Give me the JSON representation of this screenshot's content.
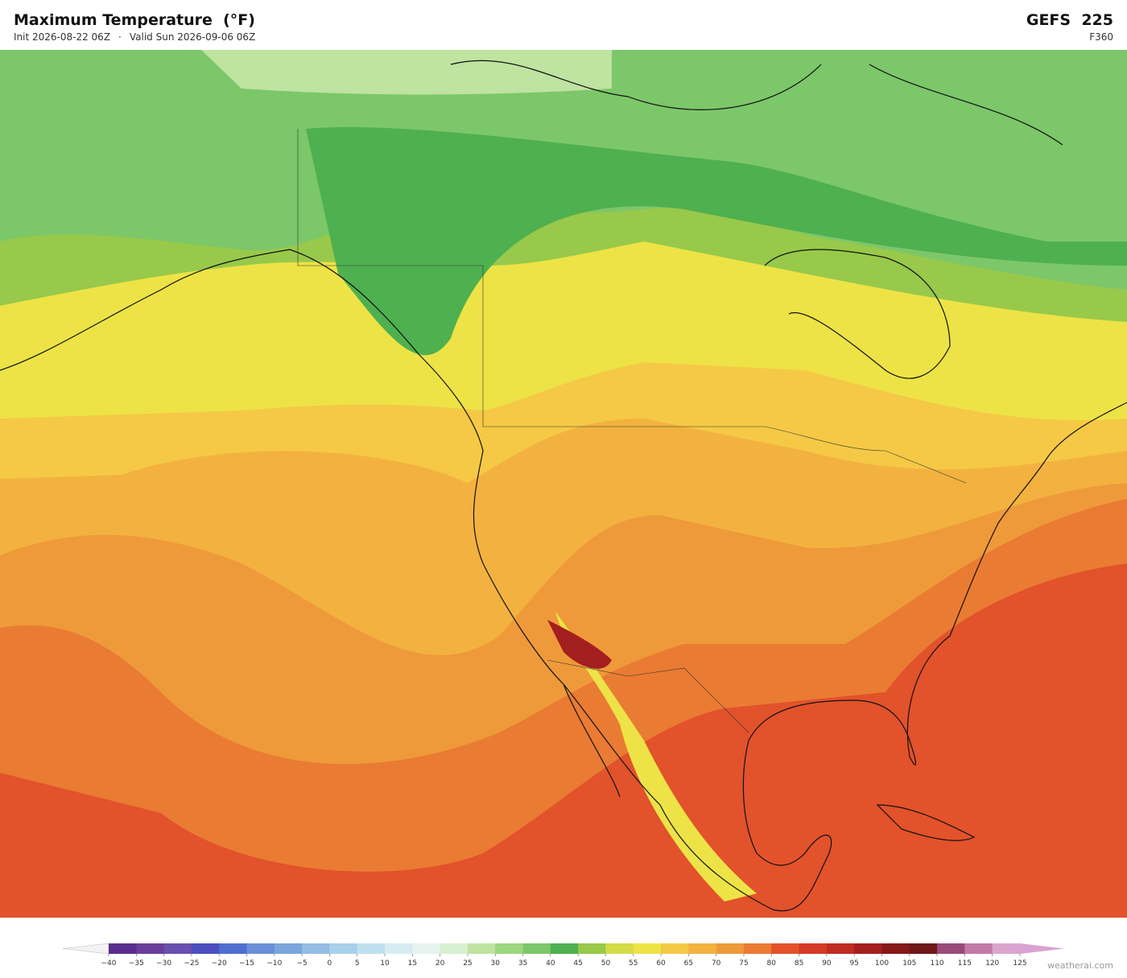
{
  "header": {
    "title": "Maximum Temperature  (°F)",
    "init": "Init 2026-08-22 06Z",
    "separator": "·",
    "valid": "Valid Sun 2026-09-06 06Z",
    "model": "GEFS  225",
    "forecast_hour": "F360"
  },
  "colorbar": {
    "ticks": [
      {
        "value": -40,
        "label": "−40"
      },
      {
        "value": -35,
        "label": "−35"
      },
      {
        "value": -30,
        "label": "−30"
      },
      {
        "value": -25,
        "label": "−25"
      },
      {
        "value": -20,
        "label": "−20"
      },
      {
        "value": -15,
        "label": "−15"
      },
      {
        "value": -10,
        "label": "−10"
      },
      {
        "value": -5,
        "label": "−5"
      },
      0,
      5,
      10,
      15,
      20,
      25,
      30,
      35,
      40,
      45,
      50,
      55,
      60,
      65,
      70,
      75,
      80,
      85,
      90,
      95,
      100,
      105,
      110,
      115,
      120,
      125
    ],
    "colors": [
      "#5b2d8e",
      "#6a3d9a",
      "#6b4fb0",
      "#4b4fc0",
      "#4f6fd0",
      "#6a8fd8",
      "#7aa6dc",
      "#94bde3",
      "#a8d0ea",
      "#c0e0ee",
      "#d6ecf2",
      "#e6f3ee",
      "#d8efcf",
      "#bfe3a0",
      "#9cd67f",
      "#7cc769",
      "#4fb04f",
      "#98c94a",
      "#d4dc48",
      "#ede346",
      "#f5c945",
      "#f3b23f",
      "#ef9a3a",
      "#ea7b33",
      "#e2522b",
      "#d43a26",
      "#bf2c22",
      "#a41f1f",
      "#861818",
      "#6e1818",
      "#9a4a7a",
      "#c27aaa",
      "#dba4cf"
    ],
    "under_color": "#f2f2f2",
    "over_color": "#d9a2d2"
  },
  "footer": {
    "credit": "weatherai.com"
  }
}
